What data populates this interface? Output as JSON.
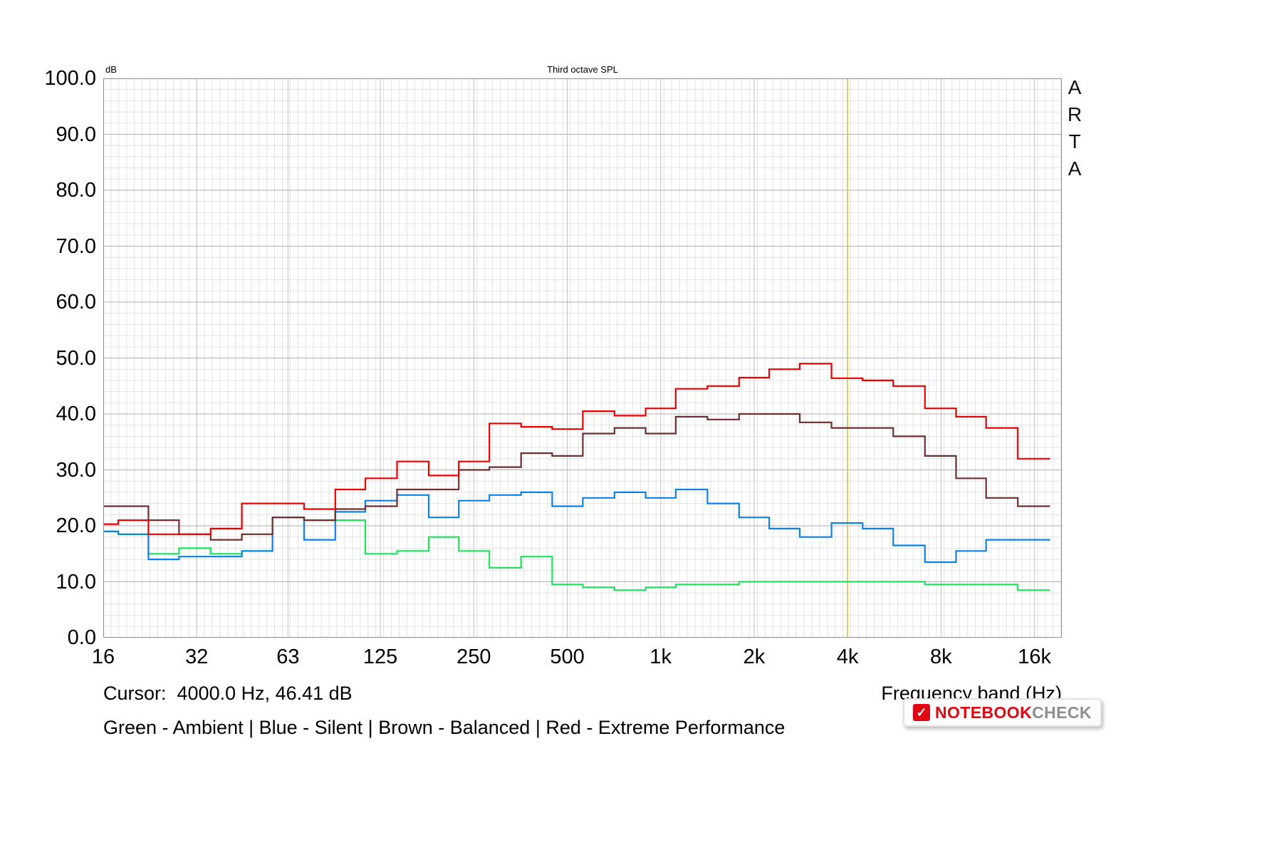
{
  "chart": {
    "title": "Third octave SPL",
    "y_unit": "dB",
    "xlabel": "Frequency band (Hz)",
    "cursor_text": "Cursor:  4000.0 Hz, 46.41 dB",
    "legend_text": "Green - Ambient | Blue - Silent | Brown - Balanced | Red - Extreme Performance",
    "watermark": "A\nR\nT\nA",
    "x_ticks": [
      {
        "label": "16",
        "hz": 16
      },
      {
        "label": "32",
        "hz": 32
      },
      {
        "label": "63",
        "hz": 63
      },
      {
        "label": "125",
        "hz": 125
      },
      {
        "label": "250",
        "hz": 250
      },
      {
        "label": "500",
        "hz": 500
      },
      {
        "label": "1k",
        "hz": 1000
      },
      {
        "label": "2k",
        "hz": 2000
      },
      {
        "label": "4k",
        "hz": 4000
      },
      {
        "label": "8k",
        "hz": 8000
      },
      {
        "label": "16k",
        "hz": 16000
      }
    ],
    "y_ticks": [
      {
        "label": "100.0",
        "db": 100
      },
      {
        "label": "90.0",
        "db": 90
      },
      {
        "label": "80.0",
        "db": 80
      },
      {
        "label": "70.0",
        "db": 70
      },
      {
        "label": "60.0",
        "db": 60
      },
      {
        "label": "50.0",
        "db": 50
      },
      {
        "label": "40.0",
        "db": 40
      },
      {
        "label": "30.0",
        "db": 30
      },
      {
        "label": "20.0",
        "db": 20
      },
      {
        "label": "10.0",
        "db": 10
      },
      {
        "label": "0.0",
        "db": 0
      }
    ]
  },
  "chart_data": {
    "type": "line",
    "style": "third-octave-step",
    "title": "Third octave SPL",
    "xlabel": "Frequency band (Hz)",
    "ylabel": "dB",
    "ylim": [
      0,
      100
    ],
    "x_scale": "log",
    "xlim_hz": [
      16,
      19600
    ],
    "grid": "on",
    "frequencies_hz": [
      16,
      20,
      25,
      31.5,
      40,
      50,
      63,
      80,
      100,
      125,
      160,
      200,
      250,
      315,
      400,
      500,
      630,
      800,
      1000,
      1250,
      1600,
      2000,
      2500,
      3150,
      4000,
      5000,
      6300,
      8000,
      10000,
      12500,
      16000
    ],
    "series": [
      {
        "name": "Ambient",
        "color": "#1ee25f",
        "values": [
          19,
          18.5,
          15,
          16,
          15,
          15.5,
          21.5,
          21,
          21,
          15,
          15.5,
          18,
          15.5,
          12.5,
          14.5,
          9.5,
          9,
          8.5,
          9,
          9.5,
          9.5,
          10,
          10,
          10,
          10,
          10,
          10,
          9.5,
          9.5,
          9.5,
          8.5
        ]
      },
      {
        "name": "Silent",
        "color": "#0c82e8",
        "values": [
          19,
          18.5,
          14,
          14.5,
          14.5,
          15.5,
          21.5,
          17.5,
          22.5,
          24.5,
          25.5,
          21.5,
          24.5,
          25.5,
          26,
          23.5,
          25,
          26,
          25,
          26.5,
          24,
          21.5,
          19.5,
          18,
          20.5,
          19.5,
          16.5,
          13.5,
          15.5,
          17.5,
          17.5
        ]
      },
      {
        "name": "Balanced",
        "color": "#6e2f2f",
        "values": [
          23.5,
          23.5,
          21,
          18.5,
          17.5,
          18.5,
          21.5,
          21,
          23,
          23.5,
          26.5,
          26.5,
          30,
          30.5,
          33,
          32.5,
          36.5,
          37.5,
          36.5,
          39.5,
          39,
          40,
          40,
          38.5,
          37.5,
          37.5,
          36,
          32.5,
          28.5,
          25,
          23.5
        ]
      },
      {
        "name": "Extreme Performance",
        "color": "#ef0000",
        "values": [
          20.3,
          21,
          18.5,
          18.5,
          19.5,
          24,
          24,
          23,
          26.5,
          28.5,
          31.5,
          29,
          31.5,
          38.3,
          37.7,
          37.3,
          40.5,
          39.7,
          41,
          44.5,
          45,
          46.5,
          48,
          49,
          46.4,
          46,
          45,
          41,
          39.5,
          37.5,
          32
        ]
      }
    ],
    "cursor": {
      "x_hz": 4000,
      "value_db": 46.41,
      "color": "#ccc04a"
    }
  },
  "logo": {
    "icon_glyph": "✓",
    "notebook": "NOTEBOOK",
    "check": "CHECK"
  }
}
